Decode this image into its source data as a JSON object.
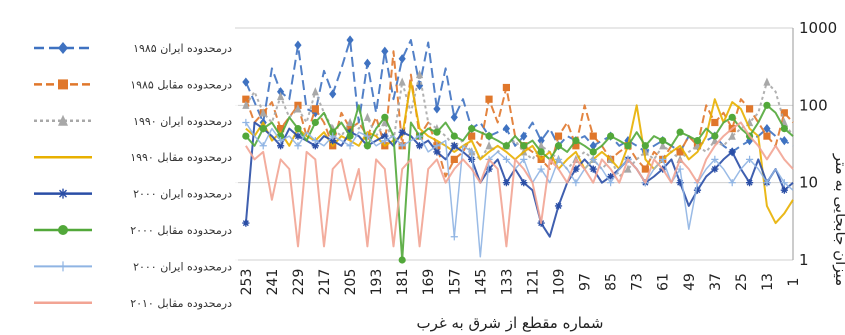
{
  "chart_data": {
    "type": "line",
    "title": "",
    "xlabel": "شماره مقطع از شرق به غرب",
    "ylabel": "میزان جابجایی به متر",
    "y_scale": "log",
    "ylim": [
      1,
      1000
    ],
    "y_ticks": [
      "1",
      "10",
      "100",
      "1000"
    ],
    "x_direction": "right-to-left",
    "xlim": [
      1,
      258
    ],
    "x_ticks": [
      "253",
      "241",
      "229",
      "217",
      "205",
      "193",
      "181",
      "169",
      "157",
      "145",
      "133",
      "121",
      "109",
      "97",
      "85",
      "73",
      "61",
      "49",
      "37",
      "25",
      "13",
      "1"
    ],
    "grid": true,
    "legend_position": "left",
    "series": [
      {
        "name": "۱۹۸۵ درمحدوده ایران",
        "color": "#3f72c1",
        "dash": "10,5",
        "marker": "diamond",
        "width": 2,
        "x": [
          253,
          249,
          245,
          241,
          237,
          233,
          229,
          225,
          221,
          217,
          213,
          209,
          205,
          201,
          197,
          193,
          189,
          185,
          181,
          177,
          173,
          169,
          165,
          161,
          157,
          153,
          149,
          145,
          141,
          137,
          133,
          129,
          125,
          121,
          117,
          113,
          109,
          105,
          101,
          97,
          93,
          89,
          85,
          81,
          77,
          73,
          69,
          65,
          61,
          57,
          53,
          49,
          45,
          41,
          37,
          33,
          29,
          25,
          21,
          17,
          13,
          9,
          5,
          1
        ],
        "values": [
          200,
          110,
          60,
          300,
          150,
          120,
          600,
          90,
          80,
          280,
          140,
          300,
          700,
          60,
          350,
          80,
          500,
          120,
          400,
          700,
          180,
          650,
          90,
          300,
          70,
          120,
          50,
          60,
          40,
          45,
          50,
          30,
          40,
          60,
          35,
          50,
          30,
          40,
          35,
          40,
          30,
          35,
          40,
          30,
          35,
          30,
          25,
          30,
          35,
          30,
          25,
          40,
          30,
          35,
          40,
          30,
          25,
          30,
          35,
          40,
          50,
          40,
          35,
          30
        ]
      },
      {
        "name": "۱۹۸۵ درمحدوده مقابل",
        "color": "#e0772b",
        "dash": "8,4",
        "marker": "square",
        "width": 2,
        "x": [
          253,
          249,
          245,
          241,
          237,
          233,
          229,
          225,
          221,
          217,
          213,
          209,
          205,
          201,
          197,
          193,
          189,
          185,
          181,
          177,
          173,
          169,
          165,
          161,
          157,
          153,
          149,
          145,
          141,
          137,
          133,
          129,
          125,
          121,
          117,
          113,
          109,
          105,
          101,
          97,
          93,
          89,
          85,
          81,
          77,
          73,
          69,
          65,
          61,
          57,
          53,
          49,
          45,
          41,
          37,
          33,
          29,
          25,
          21,
          17,
          13,
          9,
          5,
          1
        ],
        "values": [
          120,
          60,
          80,
          110,
          50,
          70,
          100,
          40,
          90,
          60,
          30,
          80,
          50,
          60,
          40,
          70,
          30,
          500,
          30,
          250,
          40,
          60,
          30,
          12,
          20,
          25,
          40,
          30,
          120,
          60,
          170,
          40,
          30,
          25,
          20,
          15,
          40,
          60,
          30,
          100,
          40,
          30,
          20,
          25,
          30,
          20,
          15,
          25,
          20,
          30,
          25,
          40,
          30,
          100,
          60,
          80,
          50,
          120,
          90,
          60,
          40,
          30,
          80,
          60
        ]
      },
      {
        "name": "۱۹۹۰ درمحدوده ایران",
        "color": "#a8a8a8",
        "dash": "3,3",
        "marker": "triangle",
        "width": 2,
        "x": [
          253,
          249,
          245,
          241,
          237,
          233,
          229,
          225,
          221,
          217,
          213,
          209,
          205,
          201,
          197,
          193,
          189,
          185,
          181,
          177,
          173,
          169,
          165,
          161,
          157,
          153,
          149,
          145,
          141,
          137,
          133,
          129,
          125,
          121,
          117,
          113,
          109,
          105,
          101,
          97,
          93,
          89,
          85,
          81,
          77,
          73,
          69,
          65,
          61,
          57,
          53,
          49,
          45,
          41,
          37,
          33,
          29,
          25,
          21,
          17,
          13,
          9,
          5,
          1
        ],
        "values": [
          100,
          150,
          80,
          60,
          130,
          70,
          90,
          60,
          150,
          80,
          50,
          40,
          60,
          50,
          70,
          40,
          60,
          35,
          200,
          80,
          250,
          60,
          50,
          40,
          30,
          35,
          25,
          20,
          30,
          25,
          30,
          35,
          25,
          20,
          30,
          25,
          20,
          15,
          20,
          25,
          20,
          15,
          20,
          12,
          15,
          20,
          25,
          20,
          30,
          25,
          20,
          25,
          30,
          25,
          35,
          30,
          40,
          50,
          60,
          80,
          200,
          150,
          60,
          40
        ]
      },
      {
        "name": "۱۹۹۰ درمحدوده مقابل",
        "color": "#e8b000",
        "dash": "",
        "marker": "none",
        "width": 2,
        "x": [
          253,
          249,
          245,
          241,
          237,
          233,
          229,
          225,
          221,
          217,
          213,
          209,
          205,
          201,
          197,
          193,
          189,
          185,
          181,
          177,
          173,
          169,
          165,
          161,
          157,
          153,
          149,
          145,
          141,
          137,
          133,
          129,
          125,
          121,
          117,
          113,
          109,
          105,
          101,
          97,
          93,
          89,
          85,
          81,
          77,
          73,
          69,
          65,
          61,
          57,
          53,
          49,
          45,
          41,
          37,
          33,
          29,
          25,
          21,
          17,
          13,
          9,
          5,
          1
        ],
        "values": [
          50,
          40,
          60,
          35,
          45,
          30,
          50,
          40,
          35,
          45,
          30,
          40,
          35,
          30,
          45,
          40,
          30,
          35,
          40,
          200,
          50,
          40,
          35,
          30,
          25,
          30,
          35,
          20,
          25,
          30,
          25,
          20,
          25,
          30,
          20,
          25,
          15,
          20,
          25,
          15,
          20,
          25,
          20,
          15,
          30,
          100,
          20,
          15,
          20,
          25,
          30,
          20,
          25,
          40,
          120,
          60,
          110,
          90,
          50,
          40,
          5,
          3,
          4,
          6
        ]
      },
      {
        "name": "۲۰۰۰ درمحدوده ایران",
        "color": "#2a4ea6",
        "dash": "",
        "marker": "star",
        "width": 2,
        "x": [
          253,
          249,
          245,
          241,
          237,
          233,
          229,
          225,
          221,
          217,
          213,
          209,
          205,
          201,
          197,
          193,
          189,
          185,
          181,
          177,
          173,
          169,
          165,
          161,
          157,
          153,
          149,
          145,
          141,
          137,
          133,
          129,
          125,
          121,
          117,
          113,
          109,
          105,
          101,
          97,
          93,
          89,
          85,
          81,
          77,
          73,
          69,
          65,
          61,
          57,
          53,
          49,
          45,
          41,
          37,
          33,
          29,
          25,
          21,
          17,
          13,
          9,
          5,
          1
        ],
        "values": [
          3,
          60,
          50,
          40,
          30,
          50,
          40,
          35,
          30,
          40,
          35,
          30,
          45,
          40,
          30,
          35,
          40,
          30,
          45,
          40,
          30,
          35,
          25,
          20,
          30,
          25,
          20,
          10,
          15,
          20,
          10,
          15,
          10,
          8,
          3,
          2,
          5,
          10,
          15,
          20,
          15,
          10,
          12,
          15,
          20,
          15,
          10,
          12,
          15,
          20,
          10,
          5,
          8,
          12,
          15,
          20,
          25,
          15,
          10,
          20,
          10,
          15,
          8,
          10
        ]
      },
      {
        "name": "۲۰۰۰ درمحدوده مقابل",
        "color": "#52a83a",
        "dash": "",
        "marker": "circle",
        "width": 2,
        "x": [
          253,
          249,
          245,
          241,
          237,
          233,
          229,
          225,
          221,
          217,
          213,
          209,
          205,
          201,
          197,
          193,
          189,
          185,
          181,
          177,
          173,
          169,
          165,
          161,
          157,
          153,
          149,
          145,
          141,
          137,
          133,
          129,
          125,
          121,
          117,
          113,
          109,
          105,
          101,
          97,
          93,
          89,
          85,
          81,
          77,
          73,
          69,
          65,
          61,
          57,
          53,
          49,
          45,
          41,
          37,
          33,
          29,
          25,
          21,
          17,
          13,
          9,
          5,
          1
        ],
        "values": [
          40,
          30,
          50,
          60,
          40,
          70,
          50,
          35,
          60,
          80,
          45,
          60,
          40,
          100,
          30,
          50,
          70,
          40,
          1,
          60,
          40,
          50,
          45,
          60,
          40,
          35,
          50,
          45,
          40,
          35,
          30,
          40,
          30,
          35,
          25,
          20,
          30,
          25,
          35,
          30,
          25,
          30,
          40,
          35,
          30,
          45,
          30,
          40,
          35,
          30,
          45,
          40,
          35,
          50,
          40,
          60,
          70,
          50,
          40,
          60,
          100,
          80,
          50,
          40
        ]
      },
      {
        "name": "۲۰۰۰ درمحدوده ایران",
        "color": "#8fb4e3",
        "dash": "",
        "marker": "plus",
        "width": 1.5,
        "x": [
          253,
          249,
          245,
          241,
          237,
          233,
          229,
          225,
          221,
          217,
          213,
          209,
          205,
          201,
          197,
          193,
          189,
          185,
          181,
          177,
          173,
          169,
          165,
          161,
          157,
          153,
          149,
          145,
          141,
          137,
          133,
          129,
          125,
          121,
          117,
          113,
          109,
          105,
          101,
          97,
          93,
          89,
          85,
          81,
          77,
          73,
          69,
          65,
          61,
          57,
          53,
          49,
          45,
          41,
          37,
          33,
          29,
          25,
          21,
          17,
          13,
          9,
          5,
          1
        ],
        "values": [
          60,
          40,
          30,
          50,
          35,
          40,
          30,
          45,
          35,
          30,
          40,
          35,
          30,
          45,
          40,
          30,
          35,
          40,
          30,
          35,
          40,
          25,
          30,
          35,
          2,
          30,
          25,
          1.1,
          20,
          25,
          20,
          15,
          20,
          10,
          15,
          10,
          20,
          15,
          10,
          15,
          20,
          15,
          10,
          15,
          20,
          15,
          10,
          15,
          20,
          10,
          15,
          2.5,
          10,
          15,
          20,
          15,
          10,
          15,
          20,
          15,
          10,
          15,
          10,
          8
        ]
      },
      {
        "name": "۲۰۱۰ درمحدوده مقابل",
        "color": "#f2a494",
        "dash": "",
        "marker": "none",
        "width": 2,
        "x": [
          253,
          249,
          245,
          241,
          237,
          233,
          229,
          225,
          221,
          217,
          213,
          209,
          205,
          201,
          197,
          193,
          189,
          185,
          181,
          177,
          173,
          169,
          165,
          161,
          157,
          153,
          149,
          145,
          141,
          137,
          133,
          129,
          125,
          121,
          117,
          113,
          109,
          105,
          101,
          97,
          93,
          89,
          85,
          81,
          77,
          73,
          69,
          65,
          61,
          57,
          53,
          49,
          45,
          41,
          37,
          33,
          29,
          25,
          21,
          17,
          13,
          9,
          5,
          1
        ],
        "values": [
          30,
          20,
          25,
          6,
          20,
          15,
          1.5,
          25,
          20,
          1.5,
          15,
          20,
          6,
          15,
          1.5,
          20,
          15,
          1.5,
          15,
          20,
          1.5,
          15,
          20,
          10,
          15,
          20,
          15,
          10,
          20,
          15,
          1.5,
          20,
          15,
          10,
          3,
          20,
          15,
          10,
          20,
          15,
          10,
          20,
          15,
          10,
          20,
          15,
          10,
          20,
          15,
          10,
          20,
          15,
          10,
          20,
          30,
          40,
          50,
          60,
          40,
          30,
          20,
          30,
          20,
          15
        ]
      }
    ]
  }
}
